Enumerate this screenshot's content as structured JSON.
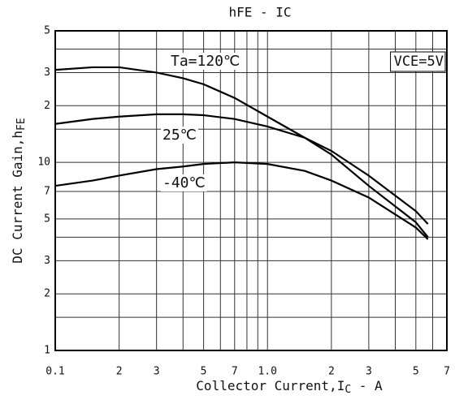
{
  "chart_data": {
    "type": "line",
    "title": "hFE - IC",
    "x_label": "Collector Current,I",
    "x_label_sub": "C",
    "x_label_tail": " - A",
    "y_label": "DC Current Gain,h",
    "y_label_sub": "FE",
    "log_x": true,
    "log_y": true,
    "grid": true,
    "xlim": [
      0.1,
      7
    ],
    "ylim": [
      1,
      50
    ],
    "xticks": [
      0.1,
      {
        "value": 0.2,
        "label": "2"
      },
      {
        "value": 0.3,
        "label": "3"
      },
      {
        "value": 0.5,
        "label": "5"
      },
      {
        "value": 0.7,
        "label": "7"
      },
      {
        "value": 1,
        "label": "1.0"
      },
      2,
      3,
      5,
      7
    ],
    "xminor": [
      0.4,
      0.6,
      0.8,
      0.9,
      4,
      6
    ],
    "yticks": [
      1,
      2,
      3,
      5,
      7,
      10,
      {
        "value": 20,
        "label": "2"
      },
      {
        "value": 30,
        "label": "3"
      },
      {
        "value": 50,
        "label": "5"
      }
    ],
    "yminor": [
      1.5,
      4,
      15,
      40
    ],
    "x": [
      0.1,
      0.15,
      0.2,
      0.3,
      0.4,
      0.5,
      0.7,
      1.0,
      1.5,
      2,
      3,
      5,
      5.7
    ],
    "series": [
      {
        "name": "Ta=120℃",
        "color": "#000000",
        "values": [
          31,
          32,
          32,
          30,
          28,
          26,
          22,
          17.5,
          13.5,
          11,
          7.5,
          4.8,
          4.0
        ]
      },
      {
        "name": "25℃",
        "color": "#000000",
        "values": [
          16,
          17,
          17.5,
          18,
          18,
          17.8,
          17,
          15.5,
          13.5,
          11.5,
          8.5,
          5.5,
          4.7
        ]
      },
      {
        "name": "-40℃",
        "color": "#000000",
        "values": [
          7.5,
          8,
          8.5,
          9.2,
          9.5,
          9.8,
          10,
          9.8,
          9,
          8,
          6.5,
          4.5,
          3.9
        ]
      }
    ],
    "annotation": "VCE=5V"
  }
}
